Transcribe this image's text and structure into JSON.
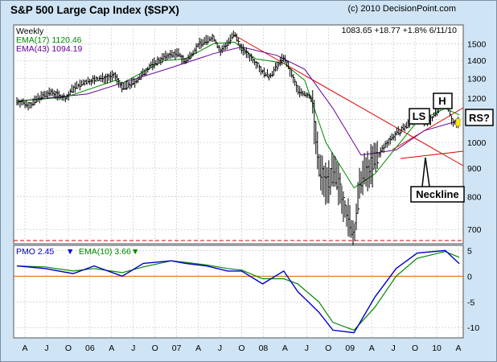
{
  "header": {
    "title": "S&P 500 Large Cap Index ($SPX)",
    "copyright": "(c) 2010 DecisionPoint.com",
    "quote": "1083.65   +18.77   +1.8%   6/11/10"
  },
  "colors": {
    "panel_bg": "#cfe4f4",
    "plot_bg": "#ffffff",
    "price": "#000000",
    "ema17": "#008800",
    "ema43": "#660099",
    "trendline": "#dd0000",
    "pmo": "#0000cc",
    "pmo_signal": "#008800",
    "zero_line": "#cc6600",
    "grid": "#bfbfbf"
  },
  "price_panel": {
    "labels": {
      "period": "Weekly",
      "ema17": "EMA(17)  1120.46",
      "ema43": "EMA(43)  1094.19"
    },
    "y_ticks": [
      "1500",
      "1400",
      "1300",
      "1200",
      "1100",
      "1000",
      "900",
      "800",
      "700"
    ],
    "annotations": {
      "ls": "LS",
      "h": "H",
      "rs": "RS?",
      "neckline": "Neckline"
    }
  },
  "pmo_panel": {
    "label_pmo": "PMO  2.45",
    "label_ema": "EMA(10)  3.66",
    "y_ticks": [
      "5",
      "0",
      "-5",
      "-10"
    ]
  },
  "x_ticks": [
    "A",
    "J",
    "O",
    "06",
    "A",
    "J",
    "O",
    "07",
    "A",
    "J",
    "O",
    "08",
    "A",
    "J",
    "O",
    "09",
    "A",
    "J",
    "O",
    "10",
    "A"
  ],
  "chart_data": [
    {
      "type": "line",
      "title": "S&P 500 Large Cap Index ($SPX)",
      "x_range": [
        "2005-03",
        "2010-06-11"
      ],
      "y_scale": "log",
      "ylim": [
        660,
        1620
      ],
      "series": [
        {
          "name": "$SPX",
          "x": [
            "2005-03",
            "2005-05",
            "2005-06",
            "2005-08",
            "2005-10",
            "2005-11",
            "2006-01",
            "2006-03",
            "2006-05",
            "2006-06",
            "2006-08",
            "2006-10",
            "2006-12",
            "2007-01",
            "2007-02",
            "2007-03",
            "2007-05",
            "2007-07",
            "2007-08",
            "2007-10",
            "2007-11",
            "2008-01",
            "2008-02",
            "2008-03",
            "2008-05",
            "2008-07",
            "2008-09",
            "2008-10",
            "2008-11",
            "2008-12",
            "2009-01",
            "2009-02",
            "2009-03",
            "2009-04",
            "2009-06",
            "2009-08",
            "2009-10",
            "2009-12",
            "2010-01",
            "2010-02",
            "2010-04",
            "2010-05",
            "2010-06"
          ],
          "y": [
            1185,
            1165,
            1200,
            1230,
            1195,
            1250,
            1285,
            1300,
            1315,
            1250,
            1285,
            1370,
            1420,
            1435,
            1440,
            1390,
            1500,
            1540,
            1450,
            1560,
            1470,
            1390,
            1335,
            1310,
            1420,
            1240,
            1200,
            900,
            850,
            880,
            835,
            740,
            680,
            860,
            930,
            1010,
            1060,
            1110,
            1090,
            1100,
            1200,
            1090,
            1084
          ]
        },
        {
          "name": "EMA(17)",
          "x": [
            "2005-03",
            "2005-10",
            "2006-05",
            "2006-06",
            "2006-12",
            "2007-03",
            "2007-07",
            "2007-10",
            "2008-01",
            "2008-05",
            "2008-08",
            "2008-11",
            "2009-03",
            "2009-06",
            "2009-09",
            "2009-12",
            "2010-04",
            "2010-06"
          ],
          "y": [
            1185,
            1205,
            1290,
            1275,
            1400,
            1410,
            1500,
            1510,
            1410,
            1385,
            1290,
            1000,
            830,
            880,
            980,
            1090,
            1150,
            1120
          ]
        },
        {
          "name": "EMA(43)",
          "x": [
            "2005-03",
            "2006-01",
            "2006-08",
            "2007-01",
            "2007-07",
            "2007-11",
            "2008-04",
            "2008-08",
            "2008-12",
            "2009-04",
            "2009-09",
            "2010-01",
            "2010-06"
          ],
          "y": [
            1185,
            1220,
            1300,
            1360,
            1440,
            1480,
            1430,
            1350,
            1150,
            950,
            970,
            1050,
            1094
          ]
        }
      ]
    },
    {
      "type": "line",
      "title": "PMO",
      "ylim": [
        -12,
        6
      ],
      "series": [
        {
          "name": "PMO",
          "x": [
            "2005-03",
            "2005-07",
            "2005-11",
            "2006-02",
            "2006-06",
            "2006-09",
            "2007-01",
            "2007-03",
            "2007-06",
            "2007-09",
            "2007-11",
            "2008-02",
            "2008-05",
            "2008-07",
            "2008-10",
            "2008-12",
            "2009-03",
            "2009-06",
            "2009-09",
            "2009-12",
            "2010-04",
            "2010-06"
          ],
          "y": [
            2,
            1.5,
            0.5,
            2,
            0,
            2.5,
            3,
            2.5,
            2,
            1,
            1,
            -1.5,
            1,
            -3,
            -7,
            -10.5,
            -11,
            -4,
            1.5,
            4.5,
            5,
            2.45
          ]
        },
        {
          "name": "EMA(10)",
          "x": [
            "2005-03",
            "2005-07",
            "2005-11",
            "2006-02",
            "2006-06",
            "2006-09",
            "2007-01",
            "2007-03",
            "2007-06",
            "2007-09",
            "2007-11",
            "2008-02",
            "2008-05",
            "2008-07",
            "2008-10",
            "2008-12",
            "2009-03",
            "2009-06",
            "2009-09",
            "2009-12",
            "2010-04",
            "2010-06"
          ],
          "y": [
            2,
            1.8,
            1,
            1.5,
            0.7,
            1.8,
            3,
            2.7,
            2.2,
            1.5,
            1.2,
            -0.5,
            -0.5,
            -1.5,
            -5,
            -9,
            -10.5,
            -6,
            0,
            3.5,
            4.8,
            3.66
          ]
        }
      ]
    }
  ]
}
